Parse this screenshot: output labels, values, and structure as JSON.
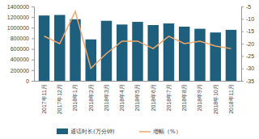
{
  "chart_data": {
    "type": "bar",
    "categories": [
      "2017年11月",
      "2017年12月",
      "2018年1月",
      "2018年2月",
      "2018年3月",
      "2018年4月",
      "2018年5月",
      "2018年6月",
      "2018年7月",
      "2018年8月",
      "2018年9月",
      "2018年10月",
      "2018年11月"
    ],
    "series": [
      {
        "name": "通话时长(万分钟)",
        "type": "bar",
        "color": "#1f5f7e",
        "values": [
          1230000,
          1240000,
          1160000,
          780000,
          1130000,
          1060000,
          1110000,
          1050000,
          1080000,
          1020000,
          980000,
          910000,
          960000
        ]
      },
      {
        "name": "增幅（%）",
        "type": "line",
        "axis": "y2",
        "color": "#f2a66a",
        "values": [
          -17,
          -20,
          -7,
          -30,
          -24,
          -19,
          -19,
          -22,
          -17,
          -20,
          -19,
          -21,
          -22
        ]
      }
    ],
    "ylim": [
      0,
      1400000
    ],
    "yticks": [
      0,
      200000,
      400000,
      600000,
      800000,
      1000000,
      1200000,
      1400000
    ],
    "y2lim": [
      -35,
      -5
    ],
    "y2ticks": [
      -35,
      -30,
      -25,
      -20,
      -15,
      -10,
      -5
    ],
    "grid": false
  }
}
